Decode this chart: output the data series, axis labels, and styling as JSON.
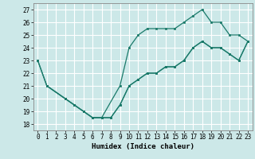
{
  "xlabel": "Humidex (Indice chaleur)",
  "bg_color": "#cce8e8",
  "grid_color": "#ffffff",
  "line_color": "#1a7a6a",
  "xlim": [
    -0.5,
    23.5
  ],
  "ylim": [
    17.5,
    27.5
  ],
  "xticks": [
    0,
    1,
    2,
    3,
    4,
    5,
    6,
    7,
    8,
    9,
    10,
    11,
    12,
    13,
    14,
    15,
    16,
    17,
    18,
    19,
    20,
    21,
    22,
    23
  ],
  "yticks": [
    18,
    19,
    20,
    21,
    22,
    23,
    24,
    25,
    26,
    27
  ],
  "line1_x": [
    0,
    1,
    3,
    4,
    5,
    6,
    7,
    8,
    9,
    10,
    11,
    12,
    13,
    14,
    15,
    16,
    17,
    18,
    19,
    20,
    21,
    22,
    23
  ],
  "line1_y": [
    23,
    21,
    20,
    19.5,
    19,
    18.5,
    18.5,
    18.5,
    19.5,
    21,
    21.5,
    22,
    22,
    22.5,
    22.5,
    23,
    24,
    24.5,
    24,
    24,
    23.5,
    23,
    24.5
  ],
  "line2_x": [
    0,
    1,
    3,
    4,
    5,
    6,
    7,
    9,
    10,
    11,
    12,
    13,
    14,
    15,
    16,
    17,
    18,
    19,
    20,
    21,
    22,
    23
  ],
  "line2_y": [
    23,
    21,
    20,
    19.5,
    19,
    18.5,
    18.5,
    21,
    24,
    25,
    25.5,
    25.5,
    25.5,
    25.5,
    26,
    26.5,
    27,
    26,
    26,
    25,
    25,
    24.5
  ],
  "line3_x": [
    1,
    3,
    4,
    5,
    6,
    7,
    8,
    9,
    10,
    11,
    12,
    13,
    14,
    15,
    16,
    17,
    18,
    19,
    20,
    21,
    22,
    23
  ],
  "line3_y": [
    21,
    20,
    19.5,
    19,
    18.5,
    18.5,
    18.5,
    19.5,
    21,
    21.5,
    22,
    22,
    22.5,
    22.5,
    23,
    24,
    24.5,
    24,
    24,
    23.5,
    23,
    24.5
  ]
}
